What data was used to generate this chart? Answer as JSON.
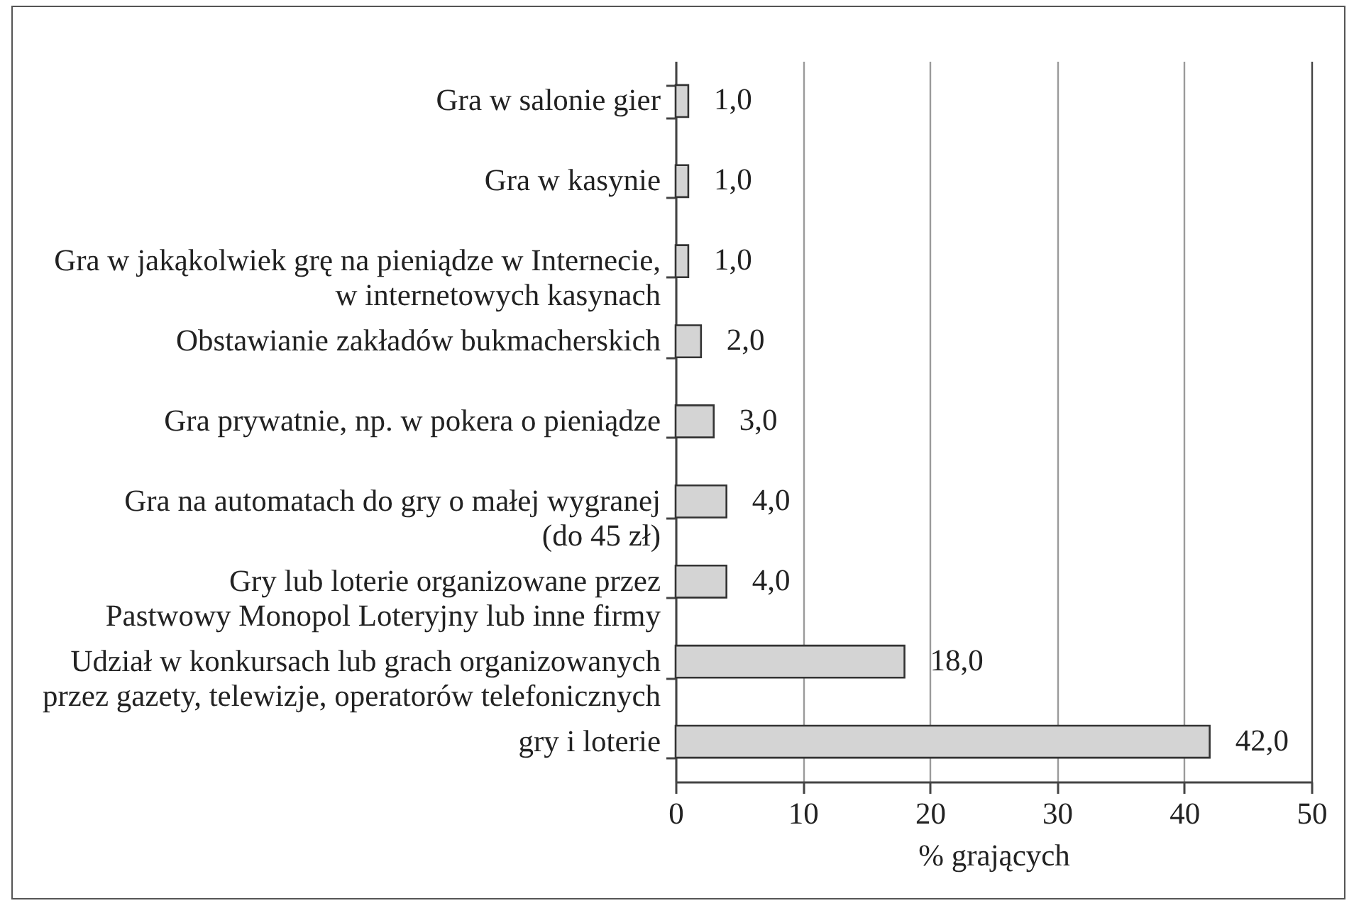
{
  "chart_data": {
    "type": "bar",
    "orientation": "horizontal",
    "categories": [
      "Gra w salonie gier",
      "Gra w kasynie",
      "Gra w jakąkolwiek grę na pieniądze w Internecie,\nw internetowych kasynach",
      "Obstawianie zakładów bukmacherskich",
      "Gra prywatnie, np. w pokera o pieniądze",
      "Gra na automatach do gry o małej wygranej\n(do 45 zł)",
      "Gry lub loterie organizowane przez\nPastwowy Monopol Loteryjny lub inne firmy",
      "Udział w konkursach lub grach organizowanych\nprzez gazety, telewizje, operatorów telefonicznych",
      "gry i loterie"
    ],
    "values": [
      1,
      1,
      1,
      2,
      3,
      4,
      4,
      18,
      42
    ],
    "value_labels": [
      "1,0",
      "1,0",
      "1,0",
      "2,0",
      "3,0",
      "4,0",
      "4,0",
      "18,0",
      "42,0"
    ],
    "color": "#d4d4d4",
    "xlabel": "% grających",
    "xlim": [
      0,
      50
    ],
    "xticks": [
      0,
      10,
      20,
      30,
      40,
      50
    ],
    "grid": "x"
  }
}
